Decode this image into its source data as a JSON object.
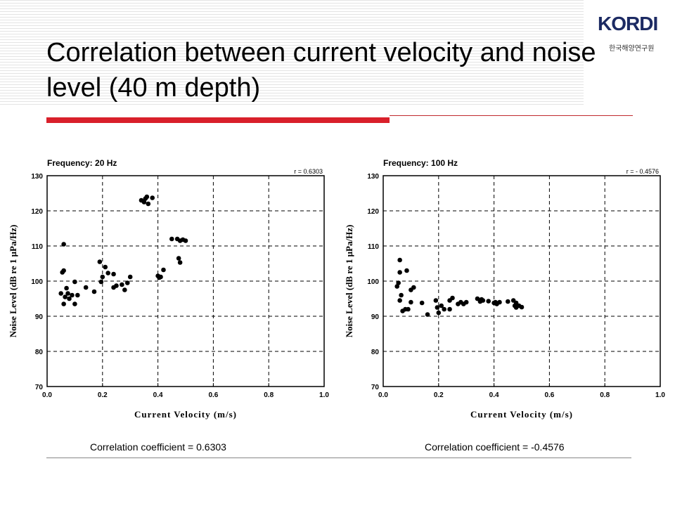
{
  "slide": {
    "title": "Correlation between current velocity and noise level (40 m depth)",
    "logo_text": "KORDI",
    "logo_subtext": "한국해양연구원",
    "accent_color": "#d9202b"
  },
  "captions": [
    "Correlation coefficient = 0.6303",
    "Correlation coefficient = -0.4576"
  ],
  "chart_data": [
    {
      "type": "scatter",
      "title": "Frequency: 20 Hz",
      "annotation": "r = 0.6303",
      "xlabel": "Current Velocity (m/s)",
      "ylabel": "Noise Level (dB re 1 μPa/Hz)",
      "xlim": [
        0.0,
        1.0
      ],
      "ylim": [
        70,
        130
      ],
      "xticks": [
        "0.0",
        "0.2",
        "0.4",
        "0.6",
        "0.8",
        "1.0"
      ],
      "yticks": [
        "70",
        "80",
        "90",
        "100",
        "110",
        "120",
        "130"
      ],
      "grid": true,
      "points": [
        [
          0.05,
          96.5
        ],
        [
          0.055,
          102.5
        ],
        [
          0.06,
          103
        ],
        [
          0.06,
          110.5
        ],
        [
          0.06,
          93.5
        ],
        [
          0.065,
          95.5
        ],
        [
          0.07,
          98
        ],
        [
          0.075,
          96.5
        ],
        [
          0.08,
          95
        ],
        [
          0.09,
          96
        ],
        [
          0.1,
          99.8
        ],
        [
          0.1,
          93.5
        ],
        [
          0.11,
          96
        ],
        [
          0.14,
          98.2
        ],
        [
          0.17,
          97
        ],
        [
          0.19,
          105.5
        ],
        [
          0.195,
          99.8
        ],
        [
          0.2,
          101.2
        ],
        [
          0.21,
          104
        ],
        [
          0.22,
          102.3
        ],
        [
          0.24,
          102
        ],
        [
          0.24,
          98.2
        ],
        [
          0.25,
          98.7
        ],
        [
          0.27,
          99
        ],
        [
          0.28,
          97.5
        ],
        [
          0.29,
          99.5
        ],
        [
          0.3,
          101.2
        ],
        [
          0.34,
          123
        ],
        [
          0.35,
          122.5
        ],
        [
          0.355,
          123.5
        ],
        [
          0.36,
          124
        ],
        [
          0.365,
          122
        ],
        [
          0.38,
          123.7
        ],
        [
          0.4,
          101.5
        ],
        [
          0.405,
          101
        ],
        [
          0.41,
          101.2
        ],
        [
          0.42,
          103.2
        ],
        [
          0.45,
          112
        ],
        [
          0.47,
          112
        ],
        [
          0.475,
          106.5
        ],
        [
          0.48,
          105.3
        ],
        [
          0.48,
          111.5
        ],
        [
          0.49,
          111.8
        ],
        [
          0.5,
          111.5
        ]
      ]
    },
    {
      "type": "scatter",
      "title": "Frequency: 100 Hz",
      "annotation": "r = - 0.4576",
      "xlabel": "Current Velocity (m/s)",
      "ylabel": "Noise Level (dB re 1 μPa/Hz)",
      "xlim": [
        0.0,
        1.0
      ],
      "ylim": [
        70,
        130
      ],
      "xticks": [
        "0.0",
        "0.2",
        "0.4",
        "0.6",
        "0.8",
        "1.0"
      ],
      "yticks": [
        "70",
        "80",
        "90",
        "100",
        "110",
        "120",
        "130"
      ],
      "grid": true,
      "points": [
        [
          0.05,
          98.5
        ],
        [
          0.055,
          99.5
        ],
        [
          0.06,
          102.5
        ],
        [
          0.06,
          106
        ],
        [
          0.06,
          94.5
        ],
        [
          0.065,
          96
        ],
        [
          0.07,
          91.5
        ],
        [
          0.08,
          92
        ],
        [
          0.085,
          103
        ],
        [
          0.09,
          92
        ],
        [
          0.1,
          97.5
        ],
        [
          0.1,
          94
        ],
        [
          0.11,
          98.2
        ],
        [
          0.14,
          93.8
        ],
        [
          0.16,
          90.5
        ],
        [
          0.19,
          94.5
        ],
        [
          0.195,
          92.5
        ],
        [
          0.2,
          91
        ],
        [
          0.21,
          93
        ],
        [
          0.22,
          92
        ],
        [
          0.24,
          92
        ],
        [
          0.24,
          94.5
        ],
        [
          0.25,
          95.2
        ],
        [
          0.27,
          93.5
        ],
        [
          0.28,
          94
        ],
        [
          0.29,
          93.5
        ],
        [
          0.3,
          94
        ],
        [
          0.34,
          95
        ],
        [
          0.35,
          94.2
        ],
        [
          0.355,
          94.8
        ],
        [
          0.36,
          94.5
        ],
        [
          0.38,
          94.3
        ],
        [
          0.4,
          93.8
        ],
        [
          0.405,
          94
        ],
        [
          0.41,
          93.5
        ],
        [
          0.42,
          94
        ],
        [
          0.45,
          94.2
        ],
        [
          0.47,
          94.5
        ],
        [
          0.475,
          93
        ],
        [
          0.48,
          93.8
        ],
        [
          0.48,
          92.5
        ],
        [
          0.49,
          93
        ],
        [
          0.5,
          92.6
        ]
      ]
    }
  ]
}
